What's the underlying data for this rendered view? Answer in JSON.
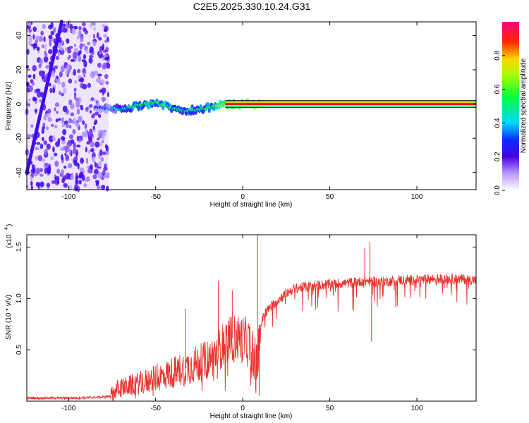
{
  "title": "C2E5.2025.330.10.24.G31",
  "chart_data": [
    {
      "type": "heatmap",
      "xlabel": "Height of straight line (km)",
      "ylabel": "Frequency (Hz)",
      "xlim": [
        -124,
        134
      ],
      "ylim": [
        -50,
        48
      ],
      "xticks": [
        -100,
        -50,
        0,
        50,
        100
      ],
      "yticks": [
        -40,
        -20,
        0,
        20,
        40
      ],
      "colorbar": {
        "label": "Normalized spectral amplitude",
        "range": [
          0,
          1
        ],
        "ticks": [
          0.0,
          0.2,
          0.4,
          0.6,
          0.8
        ]
      },
      "features": {
        "noise_region_x": [
          -124,
          -77
        ],
        "carrier_frequency_hz": 0,
        "trace": [
          {
            "x": -85,
            "y": -2,
            "amp": 0.25
          },
          {
            "x": -70,
            "y": -3,
            "amp": 0.45
          },
          {
            "x": -60,
            "y": -1,
            "amp": 0.55
          },
          {
            "x": -50,
            "y": 1,
            "amp": 0.6
          },
          {
            "x": -42,
            "y": -2,
            "amp": 0.55
          },
          {
            "x": -34,
            "y": -4,
            "amp": 0.5
          },
          {
            "x": -26,
            "y": -3,
            "amp": 0.5
          },
          {
            "x": -18,
            "y": -2,
            "amp": 0.55
          },
          {
            "x": -10,
            "y": 0,
            "amp": 0.75
          },
          {
            "x": 0,
            "y": 0,
            "amp": 0.85
          },
          {
            "x": 10,
            "y": 0,
            "amp": 0.9
          },
          {
            "x": 134,
            "y": 0,
            "amp": 0.95
          }
        ]
      }
    },
    {
      "type": "line",
      "xlabel": "Height of straight line (km)",
      "ylabel": "SNR (10 * v/v)",
      "y_multiplier": "(x10",
      "y_multiplier_exp": "4",
      "xlim": [
        -124,
        134
      ],
      "ylim": [
        0,
        1.62
      ],
      "xticks": [
        -100,
        -50,
        0,
        50,
        100
      ],
      "yticks": [
        0.5,
        1.0,
        1.5
      ],
      "yticklabels": [
        "0.5",
        "1.0",
        "1.5"
      ],
      "color": "#e8332e",
      "x": [
        -124,
        -110,
        -95,
        -80,
        -76,
        -72,
        -65,
        -58,
        -50,
        -42,
        -35,
        -28,
        -20,
        -15,
        -10,
        -5,
        0,
        5,
        8,
        10,
        12,
        15,
        20,
        25,
        30,
        40,
        50,
        60,
        70,
        80,
        90,
        100,
        110,
        120,
        134
      ],
      "values": [
        0.03,
        0.03,
        0.03,
        0.04,
        0.05,
        0.12,
        0.15,
        0.18,
        0.22,
        0.27,
        0.31,
        0.35,
        0.4,
        0.47,
        0.58,
        0.62,
        0.6,
        0.55,
        0.3,
        0.7,
        0.84,
        0.9,
        0.98,
        1.05,
        1.1,
        1.12,
        1.14,
        1.15,
        1.17,
        1.16,
        1.18,
        1.18,
        1.19,
        1.19,
        1.18
      ],
      "spikes": [
        {
          "x": -33,
          "y": 0.9
        },
        {
          "x": -14,
          "y": 1.17
        },
        {
          "x": -6,
          "y": 1.08
        },
        {
          "x": 8.5,
          "y": 1.62
        },
        {
          "x": 9.5,
          "y": 0.05
        },
        {
          "x": 70,
          "y": 1.49
        },
        {
          "x": 73,
          "y": 1.55
        },
        {
          "x": 74,
          "y": 0.58
        }
      ]
    }
  ]
}
